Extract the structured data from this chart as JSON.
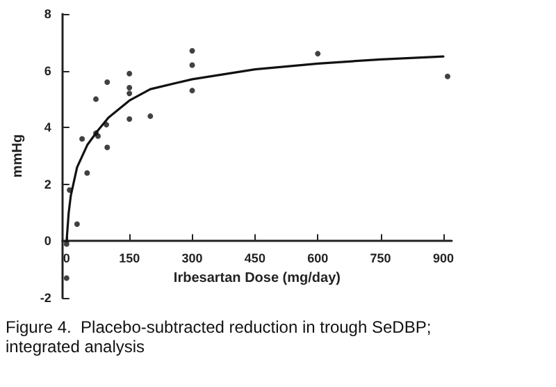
{
  "chart_data": {
    "type": "scatter",
    "xlabel": "Irbesartan Dose (mg/day)",
    "ylabel": "mmHg",
    "annotations": [
      "Figure 4.  Placebo-subtracted reduction in trough SeDBP; integrated analysis"
    ],
    "xlim": [
      -10,
      920
    ],
    "xticks": [
      0,
      150,
      300,
      450,
      600,
      750,
      900
    ],
    "ylim": [
      -2,
      8
    ],
    "yticks": [
      -2,
      0,
      2,
      4,
      6,
      8
    ],
    "grid": false,
    "marker": "circle",
    "series": [
      {
        "color": "#111111",
        "x": [
          0,
          0,
          7,
          25,
          37,
          49,
          70,
          75,
          70,
          97,
          95,
          97,
          150,
          150,
          150,
          150,
          200,
          300,
          300,
          300,
          600,
          910
        ],
        "values": [
          -0.1,
          -1.3,
          1.8,
          0.6,
          3.6,
          2.4,
          3.8,
          3.7,
          5.0,
          5.6,
          4.1,
          3.3,
          5.9,
          5.4,
          5.2,
          4.3,
          4.4,
          6.7,
          6.2,
          5.3,
          6.6,
          5.8
        ]
      },
      {
        "type": "line",
        "color": "#111111",
        "marker": "none",
        "x": [
          0,
          5,
          10,
          25,
          50,
          75,
          100,
          150,
          200,
          300,
          450,
          600,
          750,
          900
        ],
        "values": [
          0,
          1.0,
          1.6,
          2.6,
          3.4,
          3.9,
          4.35,
          4.95,
          5.35,
          5.7,
          6.05,
          6.25,
          6.4,
          6.5
        ]
      }
    ]
  }
}
